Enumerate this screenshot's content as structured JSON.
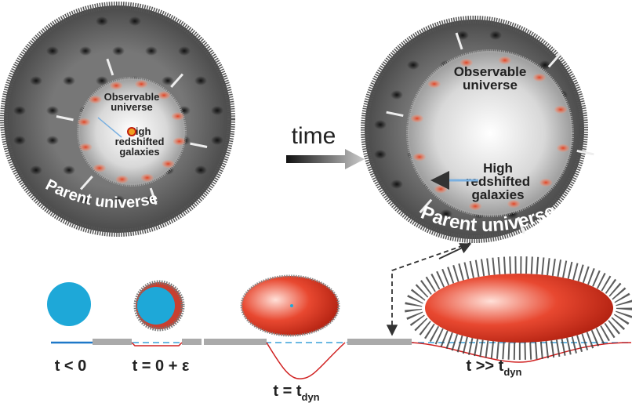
{
  "left_panel": {
    "observable": [
      "Observable",
      "universe"
    ],
    "galaxies": [
      "High",
      "redshifted",
      "galaxies"
    ],
    "parent": "Parent universe"
  },
  "arrow_label": "time",
  "right_panel": {
    "observable": [
      "Observable",
      "universe"
    ],
    "galaxies": [
      "High",
      "redshifted",
      "galaxies"
    ],
    "parent": "Parent universe"
  },
  "stages": [
    {
      "label": "t < 0"
    },
    {
      "label": "t = 0 + ε"
    },
    {
      "label": "t = t",
      "sub": "dyn"
    },
    {
      "label": "t >> t",
      "sub": "dyn"
    }
  ]
}
